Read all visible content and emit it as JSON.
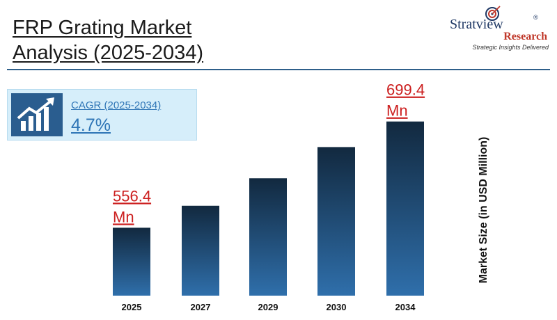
{
  "header": {
    "title_line1": "FRP Grating Market",
    "title_line2": "Analysis (2025-2034)"
  },
  "logo": {
    "name": "Stratview",
    "registered": "®",
    "research": "Research",
    "tagline": "Strategic Insights Delivered"
  },
  "cagr": {
    "label": "CAGR (2025-2034)",
    "value": "4.7%",
    "icon": "growth-chart-icon"
  },
  "colors": {
    "bar_top": "#12293f",
    "bar_bottom": "#2f6fab",
    "callout": "#cc1f1f",
    "accent": "#2e75b6"
  },
  "chart_data": {
    "type": "bar",
    "categories": [
      "2025",
      "2027",
      "2029",
      "2030",
      "2034"
    ],
    "values": [
      556.4,
      586,
      623,
      665,
      699.4
    ],
    "ylabel": "Market Size (in USD Million)",
    "annotations": [
      {
        "category": "2025",
        "line1": "556.4",
        "line2": "Mn"
      },
      {
        "category": "2034",
        "line1": "699.4",
        "line2": "Mn"
      }
    ],
    "ylim": [
      465,
      715
    ],
    "grid": false,
    "legend": "none"
  }
}
